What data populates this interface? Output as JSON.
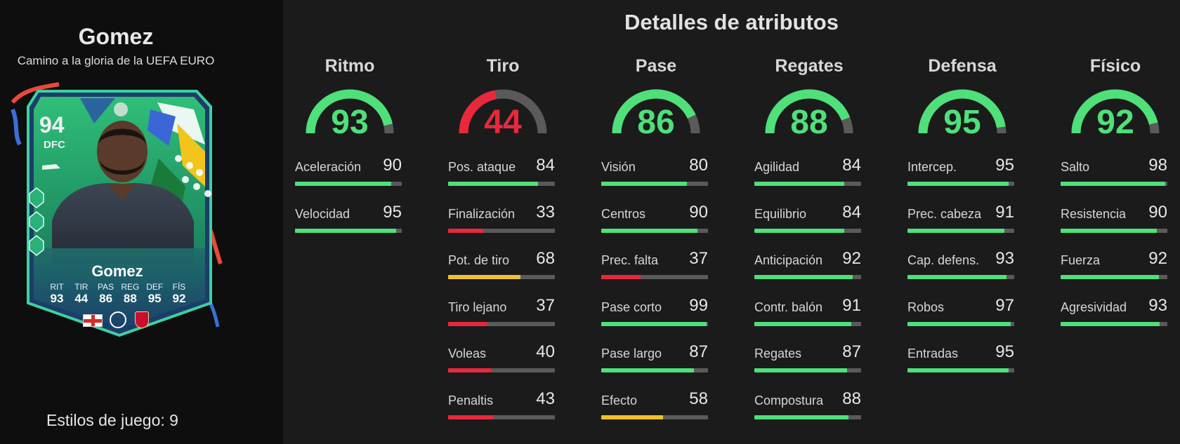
{
  "player": {
    "name": "Gomez",
    "subtitle": "Camino a la gloria de la UEFA EURO",
    "playstyles_label": "Estilos de juego: 9"
  },
  "card": {
    "rating": "94",
    "position": "DFC",
    "name": "Gomez",
    "stat_labels": [
      "RIT",
      "TIR",
      "PAS",
      "REG",
      "DEF",
      "FÍS"
    ],
    "stat_values": [
      "93",
      "44",
      "86",
      "88",
      "95",
      "92"
    ],
    "nation_icon": "england-flag-icon",
    "league_icon": "premier-league-icon",
    "club_icon": "liverpool-crest-icon"
  },
  "section_title": "Detalles de atributos",
  "colors": {
    "green": "#4fe07a",
    "green_dark": "#3cbf5e",
    "red": "#e8283c",
    "yellow": "#f0c030",
    "track": "#5a5a5a"
  },
  "categories": [
    {
      "title": "Ritmo",
      "value": 93,
      "level": "high",
      "stats": [
        {
          "label": "Aceleración",
          "value": 90
        },
        {
          "label": "Velocidad",
          "value": 95
        }
      ]
    },
    {
      "title": "Tiro",
      "value": 44,
      "level": "low",
      "stats": [
        {
          "label": "Pos. ataque",
          "value": 84
        },
        {
          "label": "Finalización",
          "value": 33
        },
        {
          "label": "Pot. de tiro",
          "value": 68
        },
        {
          "label": "Tiro lejano",
          "value": 37
        },
        {
          "label": "Voleas",
          "value": 40
        },
        {
          "label": "Penaltis",
          "value": 43
        }
      ]
    },
    {
      "title": "Pase",
      "value": 86,
      "level": "high",
      "stats": [
        {
          "label": "Visión",
          "value": 80
        },
        {
          "label": "Centros",
          "value": 90
        },
        {
          "label": "Prec. falta",
          "value": 37
        },
        {
          "label": "Pase corto",
          "value": 99
        },
        {
          "label": "Pase largo",
          "value": 87
        },
        {
          "label": "Efecto",
          "value": 58
        }
      ]
    },
    {
      "title": "Regates",
      "value": 88,
      "level": "high",
      "stats": [
        {
          "label": "Agilidad",
          "value": 84
        },
        {
          "label": "Equilibrio",
          "value": 84
        },
        {
          "label": "Anticipación",
          "value": 92
        },
        {
          "label": "Contr. balón",
          "value": 91
        },
        {
          "label": "Regates",
          "value": 87
        },
        {
          "label": "Compostura",
          "value": 88
        }
      ]
    },
    {
      "title": "Defensa",
      "value": 95,
      "level": "high",
      "stats": [
        {
          "label": "Intercep.",
          "value": 95
        },
        {
          "label": "Prec. cabeza",
          "value": 91
        },
        {
          "label": "Cap. defens.",
          "value": 93
        },
        {
          "label": "Robos",
          "value": 97
        },
        {
          "label": "Entradas",
          "value": 95
        }
      ]
    },
    {
      "title": "Físico",
      "value": 92,
      "level": "high",
      "stats": [
        {
          "label": "Salto",
          "value": 98
        },
        {
          "label": "Resistencia",
          "value": 90
        },
        {
          "label": "Fuerza",
          "value": 92
        },
        {
          "label": "Agresividad",
          "value": 93
        }
      ]
    }
  ]
}
